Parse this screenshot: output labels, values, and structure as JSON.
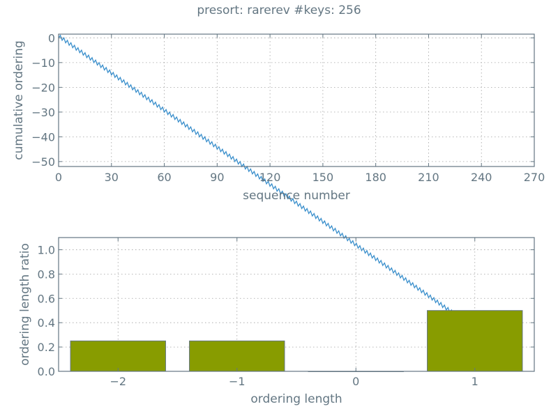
{
  "figure_title": "presort: rarerev #keys: 256",
  "chart_data": [
    {
      "type": "line",
      "title": "presort: rarerev #keys: 256",
      "xlabel": "sequence number",
      "ylabel": "cumulative ordering",
      "xlim": [
        0,
        270
      ],
      "ylim": [
        -52,
        1.5
      ],
      "xticks": [
        0,
        30,
        60,
        90,
        120,
        150,
        180,
        210,
        240,
        270
      ],
      "xtick_labels": [
        "0",
        "30",
        "60",
        "90",
        "120",
        "150",
        "180",
        "210",
        "240",
        "270"
      ],
      "yticks": [
        0,
        -10,
        -20,
        -30,
        -40,
        -50
      ],
      "ytick_labels": [
        "0",
        "−10",
        "−20",
        "−30",
        "−40",
        "−50"
      ],
      "grid": true,
      "series": [
        {
          "color": "#3a8fcc",
          "pattern": [
            1,
            -2,
            1,
            -2
          ],
          "start": 0,
          "x_range": [
            0,
            255
          ]
        }
      ]
    },
    {
      "type": "bar",
      "xlabel": "ordering length",
      "ylabel": "ordering length ratio",
      "categories": [
        -2,
        -1,
        0,
        1
      ],
      "category_labels": [
        "−2",
        "−1",
        "0",
        "1"
      ],
      "values": [
        0.25,
        0.25,
        0.0,
        0.5
      ],
      "bar_width": 0.8,
      "xlim": [
        -2.5,
        1.5
      ],
      "ylim": [
        0.0,
        1.1
      ],
      "yticks": [
        0.0,
        0.2,
        0.4,
        0.6,
        0.8,
        1.0
      ],
      "ytick_labels": [
        "0.0",
        "0.2",
        "0.4",
        "0.6",
        "0.8",
        "1.0"
      ],
      "grid": true,
      "color": "#889c00"
    }
  ]
}
